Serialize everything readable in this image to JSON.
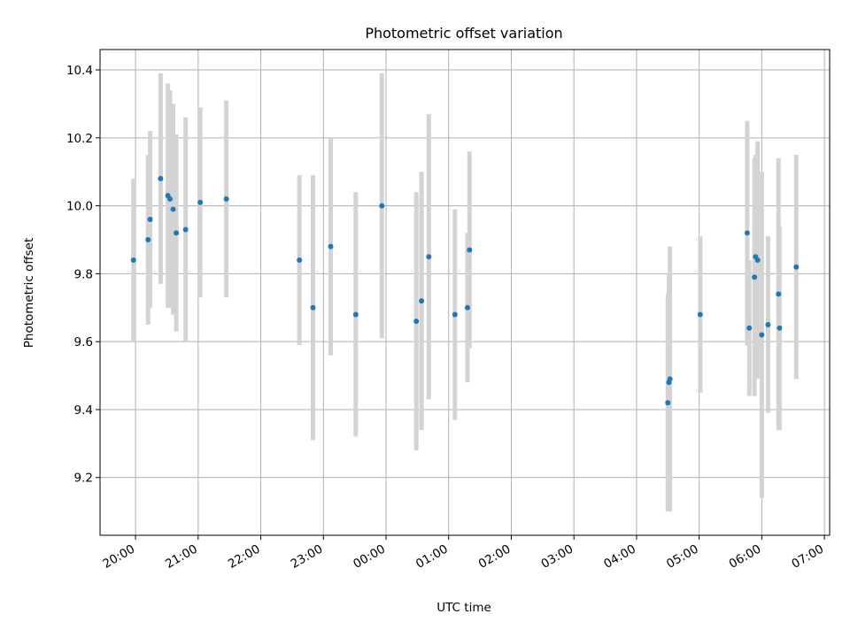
{
  "chart_data": {
    "type": "scatter",
    "title": "Photometric offset variation",
    "xlabel": "UTC time",
    "ylabel": "Photometric offset",
    "x_axis": {
      "kind": "time",
      "start": "19:26",
      "end": "07:05",
      "unit": "HH:MM"
    },
    "ylim": [
      9.03,
      10.46
    ],
    "yticks": [
      9.2,
      9.4,
      9.6,
      9.8,
      10.0,
      10.2,
      10.4
    ],
    "ytick_labels": [
      "9.2",
      "9.4",
      "9.6",
      "9.8",
      "10.0",
      "10.2",
      "10.4"
    ],
    "xticks": [
      "20:00",
      "21:00",
      "22:00",
      "23:00",
      "00:00",
      "01:00",
      "02:00",
      "03:00",
      "04:00",
      "05:00",
      "06:00",
      "07:00"
    ],
    "grid": true,
    "marker_color": "#1f77b4",
    "errorbar_color": "#d3d3d3",
    "points": [
      {
        "x": "19:58",
        "y": 9.84,
        "err": 0.24
      },
      {
        "x": "20:12",
        "y": 9.9,
        "err": 0.25
      },
      {
        "x": "20:14",
        "y": 9.96,
        "err": 0.26
      },
      {
        "x": "20:24",
        "y": 10.08,
        "err": 0.31
      },
      {
        "x": "20:31",
        "y": 10.03,
        "err": 0.33
      },
      {
        "x": "20:33",
        "y": 10.02,
        "err": 0.32
      },
      {
        "x": "20:36",
        "y": 9.99,
        "err": 0.31
      },
      {
        "x": "20:39",
        "y": 9.92,
        "err": 0.29
      },
      {
        "x": "20:48",
        "y": 9.93,
        "err": 0.33
      },
      {
        "x": "21:02",
        "y": 10.01,
        "err": 0.28
      },
      {
        "x": "21:27",
        "y": 10.02,
        "err": 0.29
      },
      {
        "x": "22:37",
        "y": 9.84,
        "err": 0.25
      },
      {
        "x": "22:50",
        "y": 9.7,
        "err": 0.39
      },
      {
        "x": "23:07",
        "y": 9.88,
        "err": 0.32
      },
      {
        "x": "23:31",
        "y": 9.68,
        "err": 0.36
      },
      {
        "x": "23:56",
        "y": 10.0,
        "err": 0.39
      },
      {
        "x": "00:29",
        "y": 9.66,
        "err": 0.38
      },
      {
        "x": "00:34",
        "y": 9.72,
        "err": 0.38
      },
      {
        "x": "00:41",
        "y": 9.85,
        "err": 0.42
      },
      {
        "x": "01:06",
        "y": 9.68,
        "err": 0.31
      },
      {
        "x": "01:18",
        "y": 9.7,
        "err": 0.22
      },
      {
        "x": "01:20",
        "y": 9.87,
        "err": 0.29
      },
      {
        "x": "04:30",
        "y": 9.42,
        "err": 0.32
      },
      {
        "x": "04:31",
        "y": 9.48,
        "err": 0.32
      },
      {
        "x": "04:32",
        "y": 9.49,
        "err": 0.39
      },
      {
        "x": "05:01",
        "y": 9.68,
        "err": 0.23
      },
      {
        "x": "05:46",
        "y": 9.92,
        "err": 0.33
      },
      {
        "x": "05:48",
        "y": 9.64,
        "err": 0.2
      },
      {
        "x": "05:53",
        "y": 9.79,
        "err": 0.35
      },
      {
        "x": "05:54",
        "y": 9.85,
        "err": 0.3
      },
      {
        "x": "05:56",
        "y": 9.84,
        "err": 0.35
      },
      {
        "x": "06:00",
        "y": 9.62,
        "err": 0.48
      },
      {
        "x": "06:06",
        "y": 9.65,
        "err": 0.26
      },
      {
        "x": "06:16",
        "y": 9.74,
        "err": 0.4
      },
      {
        "x": "06:17",
        "y": 9.64,
        "err": 0.3
      },
      {
        "x": "06:33",
        "y": 9.82,
        "err": 0.33
      }
    ]
  }
}
